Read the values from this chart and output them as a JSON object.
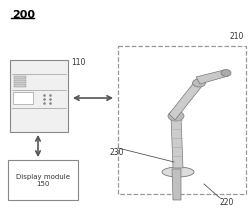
{
  "fig_label": "200",
  "box_110_label": "110",
  "box_150_label": "Display module\n150",
  "box_210_label": "210",
  "label_220": "220",
  "label_230": "230",
  "bg_color": "#ffffff",
  "box_color": "#888888",
  "dashed_box_color": "#aaaaaa",
  "arrow_color": "#555555",
  "text_color": "#333333",
  "fig_label_color": "#000000"
}
